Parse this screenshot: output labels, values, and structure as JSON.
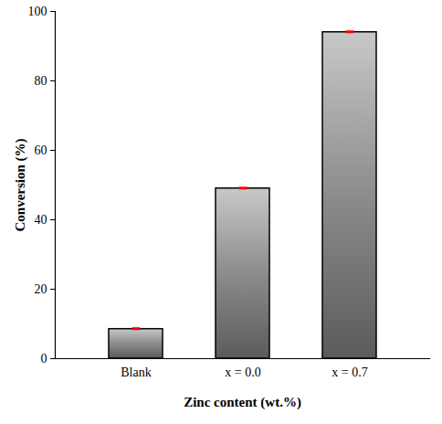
{
  "chart_data": {
    "type": "bar",
    "categories": [
      "Blank",
      "x = 0.0",
      "x = 0.7"
    ],
    "values": [
      8.5,
      49,
      94
    ],
    "errors": [
      0.4,
      0.4,
      0.4
    ],
    "color": "#8c8c8c",
    "x_label": "Zinc content (wt.%)",
    "y_label": "Conversion (%)",
    "ylim": [
      0,
      100
    ],
    "yticks": [
      0,
      20,
      40,
      60,
      80,
      100
    ],
    "grid": false
  }
}
